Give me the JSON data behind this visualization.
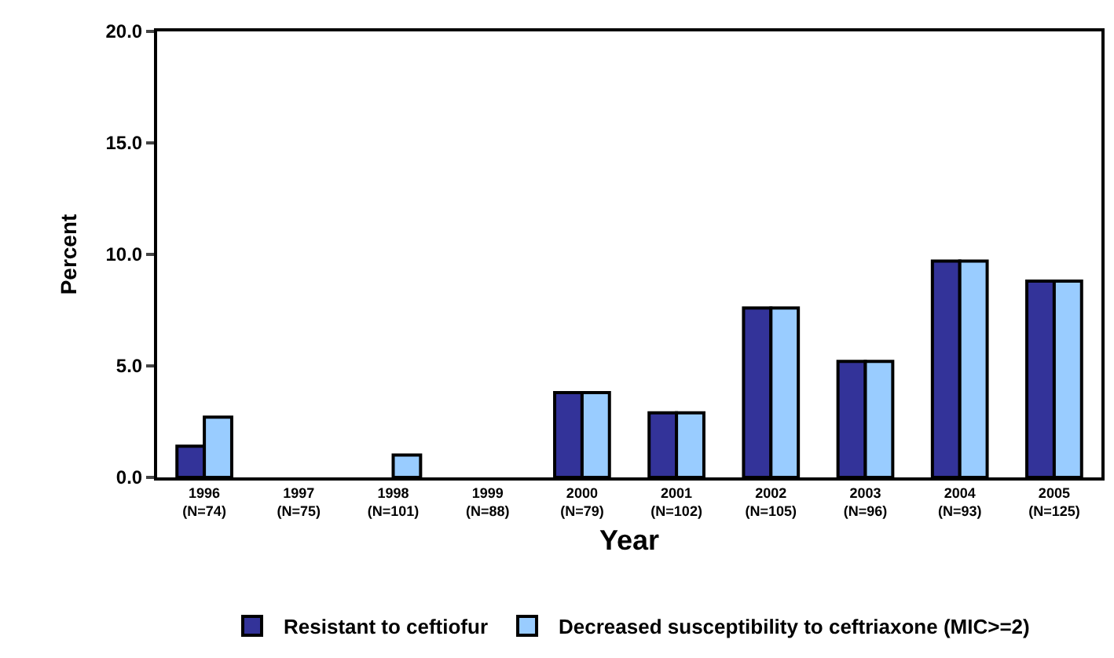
{
  "chart_data": {
    "type": "bar",
    "xlabel": "Year",
    "ylabel": "Percent",
    "categories": [
      "1996\n(N=74)",
      "1997\n(N=75)",
      "1998\n(N=101)",
      "1999\n(N=88)",
      "2000\n(N=79)",
      "2001\n(N=102)",
      "2002\n(N=105)",
      "2003\n(N=96)",
      "2004\n(N=93)",
      "2005\n(N=125)"
    ],
    "series": [
      {
        "name": "Resistant to ceftiofur",
        "color": "#333399",
        "values": [
          1.4,
          0,
          0,
          0,
          3.8,
          2.9,
          7.6,
          5.2,
          9.7,
          8.8
        ]
      },
      {
        "name": "Decreased susceptibility to ceftriaxone (MIC>=2)",
        "color": "#99ccff",
        "values": [
          2.7,
          0,
          1.0,
          0,
          3.8,
          2.9,
          7.6,
          5.2,
          9.7,
          8.8
        ]
      }
    ],
    "ylim": [
      0,
      20
    ],
    "yticks": [
      {
        "value": 0,
        "label": "0.0"
      },
      {
        "value": 5,
        "label": "5.0"
      },
      {
        "value": 10,
        "label": "10.0"
      },
      {
        "value": 15,
        "label": "15.0"
      },
      {
        "value": 20,
        "label": "20.0"
      }
    ],
    "legend": "bottom"
  }
}
